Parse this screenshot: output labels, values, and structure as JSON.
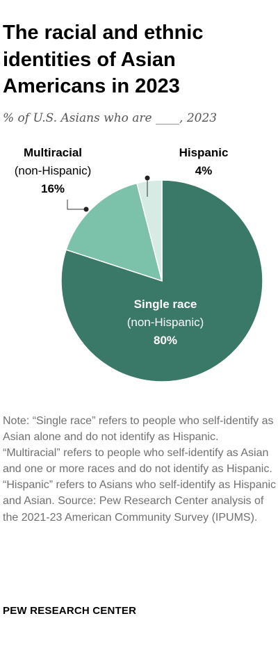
{
  "chart_data": {
    "type": "pie",
    "title": "The racial and ethnic identities of Asian Americans in 2023",
    "subtitle": "% of U.S. Asians who are ____, 2023",
    "slices": [
      {
        "name": "Single race",
        "qualifier": "(non-Hispanic)",
        "value": 80,
        "value_label": "80%",
        "color": "#3a7868"
      },
      {
        "name": "Multiracial",
        "qualifier": "(non-Hispanic)",
        "value": 16,
        "value_label": "16%",
        "color": "#7cc1a9"
      },
      {
        "name": "Hispanic",
        "qualifier": "",
        "value": 4,
        "value_label": "4%",
        "color": "#d6ebe4"
      }
    ]
  },
  "note": "Note: “Single race” refers to people who self-identify as Asian alone and do not identify as Hispanic. “Multiracial” refers to people who self-identify as Asian and one or more races and do not identify as Hispanic. “Hispanic” refers to Asians who self-identify as Hispanic and Asian.",
  "source": "Source: Pew Research Center analysis of the 2021-23 American Community Survey (IPUMS).",
  "branding": "PEW RESEARCH CENTER"
}
